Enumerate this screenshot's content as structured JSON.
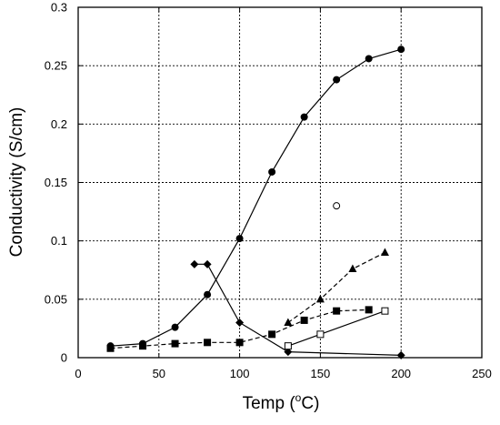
{
  "chart_data": {
    "type": "line",
    "xlabel": "Temp (",
    "xlabel_sup": "o",
    "xlabel_tail": "C)",
    "ylabel": "Conductivity (S/cm)",
    "xlim": [
      0,
      250
    ],
    "ylim": [
      0,
      0.3
    ],
    "xticks": [
      "0",
      "50",
      "100",
      "150",
      "200",
      "250"
    ],
    "yticks": [
      "0",
      "0.05",
      "0.1",
      "0.15",
      "0.2",
      "0.25",
      "0.3"
    ],
    "grid": true,
    "legend": "none",
    "series": [
      {
        "marker": "circle-filled",
        "line": "solid",
        "x": [
          20,
          40,
          60,
          80,
          100,
          120,
          140,
          160,
          180,
          200
        ],
        "values": [
          0.01,
          0.012,
          0.026,
          0.054,
          0.102,
          0.159,
          0.206,
          0.238,
          0.256,
          0.264
        ]
      },
      {
        "marker": "diamond-filled",
        "line": "solid",
        "x": [
          72,
          80,
          100,
          130,
          200
        ],
        "values": [
          0.08,
          0.08,
          0.03,
          0.005,
          0.002
        ]
      },
      {
        "marker": "square-filled",
        "line": "dashed",
        "x": [
          20,
          40,
          60,
          80,
          100,
          120,
          140,
          160,
          180
        ],
        "values": [
          0.008,
          0.01,
          0.012,
          0.013,
          0.013,
          0.02,
          0.032,
          0.04,
          0.041
        ]
      },
      {
        "marker": "triangle-filled",
        "line": "dashed",
        "x": [
          130,
          150,
          170,
          190
        ],
        "values": [
          0.03,
          0.05,
          0.076,
          0.09
        ]
      },
      {
        "marker": "square-open",
        "line": "solid",
        "x": [
          130,
          150,
          190
        ],
        "values": [
          0.01,
          0.02,
          0.04
        ]
      },
      {
        "marker": "circle-open",
        "line": "none",
        "x": [
          160
        ],
        "values": [
          0.13
        ]
      }
    ]
  }
}
